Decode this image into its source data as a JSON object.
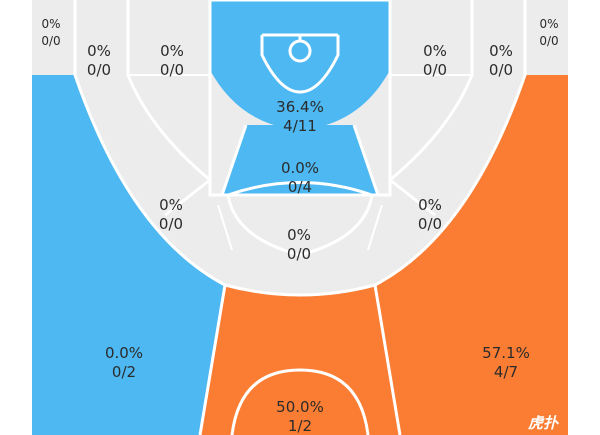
{
  "zones": {
    "left_corner": {
      "pct": "0%",
      "ratio": "0/0",
      "color": "#ececec"
    },
    "right_corner": {
      "pct": "0%",
      "ratio": "0/0",
      "color": "#ececec"
    },
    "left_wing_three": {
      "pct": "0%",
      "ratio": "0/0",
      "color": "#ececec"
    },
    "left_mid_base": {
      "pct": "0%",
      "ratio": "0/0",
      "color": "#ececec"
    },
    "restricted_area": {
      "pct": "36.4%",
      "ratio": "4/11",
      "color": "#4db8f2"
    },
    "right_mid_base": {
      "pct": "0%",
      "ratio": "0/0",
      "color": "#ececec"
    },
    "right_wing_three": {
      "pct": "0%",
      "ratio": "0/0",
      "color": "#ececec"
    },
    "paint": {
      "pct": "0.0%",
      "ratio": "0/4",
      "color": "#4db8f2"
    },
    "left_elbow": {
      "pct": "0%",
      "ratio": "0/0",
      "color": "#ececec"
    },
    "right_elbow": {
      "pct": "0%",
      "ratio": "0/0",
      "color": "#ececec"
    },
    "free_throw": {
      "pct": "0%",
      "ratio": "0/0",
      "color": "#ececec"
    },
    "left_three": {
      "pct": "0.0%",
      "ratio": "0/2",
      "color": "#4db8f2"
    },
    "right_three": {
      "pct": "57.1%",
      "ratio": "4/7",
      "color": "#fa7d33"
    },
    "top_three": {
      "pct": "50.0%",
      "ratio": "1/2",
      "color": "#fa7d33"
    }
  },
  "watermark": {
    "text": "虎扑"
  }
}
